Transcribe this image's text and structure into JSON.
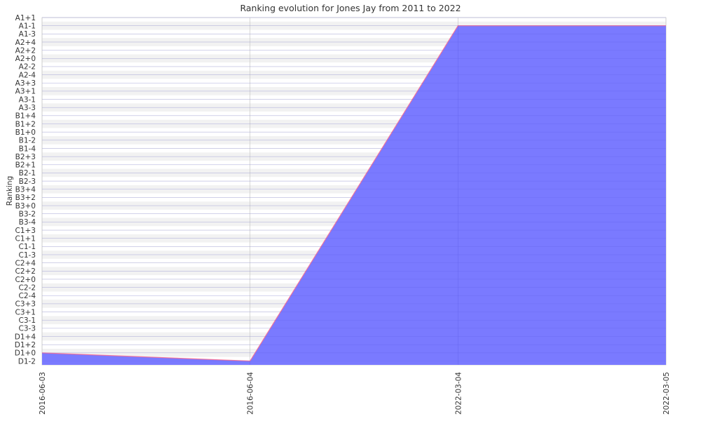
{
  "chart_data": {
    "type": "area",
    "title": "Ranking evolution for Jones Jay from 2011 to 2022",
    "xlabel": "",
    "ylabel": "Ranking",
    "categories": [
      "A1+1",
      "A1-1",
      "A1-3",
      "A2+4",
      "A2+2",
      "A2+0",
      "A2-2",
      "A2-4",
      "A3+3",
      "A3+1",
      "A3-1",
      "A3-3",
      "B1+4",
      "B1+2",
      "B1+0",
      "B1-2",
      "B1-4",
      "B2+3",
      "B2+1",
      "B2-1",
      "B2-3",
      "B3+4",
      "B3+2",
      "B3+0",
      "B3-2",
      "B3-4",
      "C1+3",
      "C1+1",
      "C1-1",
      "C1-3",
      "C2+4",
      "C2+2",
      "C2+0",
      "C2-2",
      "C2-4",
      "C3+3",
      "C3+1",
      "C3-1",
      "C3-3",
      "D1+4",
      "D1+2",
      "D1+0",
      "D1-2"
    ],
    "x": [
      "2016-06-03",
      "2016-06-04",
      "2022-03-04",
      "2022-03-05"
    ],
    "series": [
      {
        "values": [
          "D1+0",
          "D1-2",
          "A1-1",
          "A1-1"
        ]
      }
    ],
    "colors": {
      "fill": "#7777ff",
      "line": "#ff6688",
      "grid_alt": "#f2f2f2",
      "grid_line": "#dddddd"
    },
    "grid": true,
    "legend": "none"
  }
}
